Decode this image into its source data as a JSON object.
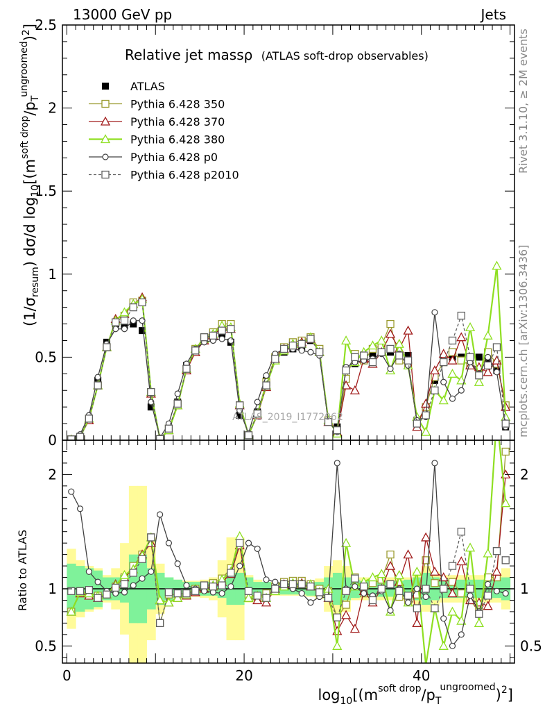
{
  "header": {
    "left_label": "13000 GeV pp",
    "right_label": "Jets"
  },
  "side": {
    "rivet_label": "Rivet 3.1.10, ≥ 2M events",
    "mcplots_label": "mcplots.cern.ch [arXiv:1306.3436]"
  },
  "plot_title": {
    "main": "Relative jet massρ",
    "sub": "(ATLAS soft-drop observables)"
  },
  "watermark": "ATLAS_2019_I1772062",
  "axes": {
    "ylabel_main": "(1/σresum) dσ/d log10[(m soft drop/pT ungroomed)2]",
    "ylabel_ratio": "Ratio to ATLAS",
    "xlabel": "log10[(m soft drop/pT ungroomed)2]"
  },
  "colors": {
    "atlas": "#000000",
    "p350": "#9a9a2e",
    "p370": "#a11b1b",
    "p380": "#8fdf22",
    "p0": "#404040",
    "p2010": "#606060",
    "band_inner": "#7ff29a",
    "band_outer": "#fffb99"
  },
  "chart_data": {
    "type": "line",
    "x": [
      0.5,
      1.5,
      2.5,
      3.5,
      4.5,
      5.5,
      6.5,
      7.5,
      8.5,
      9.5,
      10.5,
      11.5,
      12.5,
      13.5,
      14.5,
      15.5,
      16.5,
      17.5,
      18.5,
      19.5,
      20.5,
      21.5,
      22.5,
      23.5,
      24.5,
      25.5,
      26.5,
      27.5,
      28.5,
      29.5,
      30.5,
      31.5,
      32.5,
      33.5,
      34.5,
      35.5,
      36.5,
      37.5,
      38.5,
      39.5,
      40.5,
      41.5,
      42.5,
      43.5,
      44.5,
      45.5,
      46.5,
      47.5,
      48.5,
      49.5
    ],
    "xlim": [
      -0.5,
      50.5
    ],
    "ylim_main": [
      0,
      2.5
    ],
    "ylim_ratio": [
      0.35,
      2.3
    ],
    "xticks": [
      0,
      20,
      40
    ],
    "yticks_main": [
      0,
      0.5,
      1,
      1.5,
      2,
      2.5
    ],
    "yticks_ratio": [
      0.5,
      1,
      2
    ],
    "legend_position": "top-left",
    "series": [
      {
        "name": "ATLAS",
        "key": "atlas",
        "marker": "filled-square",
        "values": [
          0.005,
          0.02,
          0.13,
          0.36,
          0.59,
          0.7,
          0.69,
          0.7,
          0.66,
          0.2,
          0.01,
          0.07,
          0.23,
          0.45,
          0.55,
          0.6,
          0.62,
          0.64,
          0.59,
          0.15,
          0.03,
          0.17,
          0.36,
          0.49,
          0.53,
          0.55,
          0.56,
          0.6,
          0.55,
          0.12,
          0.08,
          0.43,
          0.46,
          0.5,
          0.52,
          0.53,
          0.53,
          0.52,
          0.51,
          0.12,
          0.15,
          0.36,
          0.47,
          0.5,
          0.5,
          0.5,
          0.5,
          0.48,
          0.42,
          0.08
        ]
      },
      {
        "name": "Pythia 6.428 350",
        "key": "p350",
        "marker": "open-square",
        "values": [
          0.005,
          0.02,
          0.13,
          0.33,
          0.56,
          0.71,
          0.75,
          0.83,
          0.84,
          0.29,
          0.007,
          0.07,
          0.22,
          0.43,
          0.55,
          0.62,
          0.65,
          0.7,
          0.7,
          0.21,
          0.03,
          0.16,
          0.35,
          0.5,
          0.56,
          0.59,
          0.6,
          0.62,
          0.55,
          0.12,
          0.06,
          0.37,
          0.52,
          0.48,
          0.55,
          0.57,
          0.7,
          0.48,
          0.45,
          0.11,
          0.2,
          0.38,
          0.47,
          0.53,
          0.48,
          0.45,
          0.4,
          0.53,
          0.46,
          0.21
        ]
      },
      {
        "name": "Pythia 6.428 370",
        "key": "p370",
        "marker": "open-triangle",
        "values": [
          0.004,
          0.02,
          0.12,
          0.33,
          0.56,
          0.73,
          0.76,
          0.82,
          0.86,
          0.28,
          0.008,
          0.06,
          0.21,
          0.42,
          0.53,
          0.6,
          0.63,
          0.68,
          0.67,
          0.21,
          0.03,
          0.15,
          0.32,
          0.49,
          0.55,
          0.57,
          0.59,
          0.61,
          0.53,
          0.11,
          0.05,
          0.33,
          0.3,
          0.49,
          0.46,
          0.53,
          0.64,
          0.55,
          0.66,
          0.08,
          0.22,
          0.42,
          0.52,
          0.48,
          0.62,
          0.45,
          0.44,
          0.41,
          0.48,
          0.2
        ]
      },
      {
        "name": "Pythia 6.428 380",
        "key": "p380",
        "marker": "open-triangle",
        "values": [
          0.004,
          0.02,
          0.13,
          0.33,
          0.56,
          0.72,
          0.77,
          0.82,
          0.85,
          0.29,
          0.007,
          0.06,
          0.21,
          0.43,
          0.55,
          0.61,
          0.64,
          0.69,
          0.68,
          0.22,
          0.03,
          0.16,
          0.33,
          0.48,
          0.54,
          0.58,
          0.58,
          0.62,
          0.53,
          0.12,
          0.04,
          0.6,
          0.47,
          0.53,
          0.57,
          0.6,
          0.42,
          0.58,
          0.45,
          0.14,
          0.05,
          0.3,
          0.24,
          0.4,
          0.36,
          0.68,
          0.35,
          0.63,
          1.05,
          0.14
        ]
      },
      {
        "name": "Pythia 6.428 p0",
        "key": "p0",
        "marker": "open-circle",
        "values": [
          0.009,
          0.035,
          0.15,
          0.38,
          0.58,
          0.67,
          0.67,
          0.72,
          0.72,
          0.23,
          0.014,
          0.1,
          0.28,
          0.46,
          0.55,
          0.59,
          0.6,
          0.61,
          0.6,
          0.18,
          0.04,
          0.23,
          0.39,
          0.52,
          0.55,
          0.55,
          0.54,
          0.53,
          0.51,
          0.11,
          0.05,
          0.44,
          0.47,
          0.48,
          0.49,
          0.52,
          0.43,
          0.52,
          0.45,
          0.12,
          0.14,
          0.77,
          0.35,
          0.25,
          0.3,
          0.47,
          0.4,
          0.5,
          0.41,
          0.08
        ]
      },
      {
        "name": "Pythia 6.428 p2010",
        "key": "p2010",
        "marker": "dashed-open-square",
        "values": [
          0.005,
          0.02,
          0.13,
          0.33,
          0.56,
          0.71,
          0.72,
          0.8,
          0.83,
          0.29,
          0.007,
          0.07,
          0.22,
          0.43,
          0.54,
          0.62,
          0.63,
          0.66,
          0.67,
          0.21,
          0.03,
          0.16,
          0.33,
          0.49,
          0.55,
          0.57,
          0.58,
          0.61,
          0.53,
          0.11,
          0.06,
          0.42,
          0.5,
          0.51,
          0.47,
          0.53,
          0.55,
          0.51,
          0.48,
          0.1,
          0.15,
          0.3,
          0.47,
          0.6,
          0.75,
          0.5,
          0.39,
          0.45,
          0.56,
          0.1
        ]
      }
    ],
    "ratio": {
      "band_inner": [
        0.22,
        0.2,
        0.18,
        0.16,
        0.1,
        0.1,
        0.12,
        0.3,
        0.3,
        0.18,
        0.14,
        0.1,
        0.08,
        0.06,
        0.06,
        0.06,
        0.06,
        0.08,
        0.14,
        0.14,
        0.1,
        0.06,
        0.06,
        0.05,
        0.05,
        0.05,
        0.05,
        0.06,
        0.06,
        0.1,
        0.14,
        0.1,
        0.08,
        0.07,
        0.07,
        0.07,
        0.07,
        0.07,
        0.08,
        0.1,
        0.14,
        0.1,
        0.08,
        0.08,
        0.08,
        0.08,
        0.08,
        0.08,
        0.08,
        0.1
      ],
      "band_outer": [
        0.35,
        0.25,
        0.2,
        0.18,
        0.12,
        0.18,
        0.4,
        0.9,
        0.9,
        0.45,
        0.22,
        0.1,
        0.08,
        0.07,
        0.07,
        0.08,
        0.1,
        0.25,
        0.45,
        0.45,
        0.12,
        0.08,
        0.06,
        0.06,
        0.06,
        0.06,
        0.06,
        0.07,
        0.09,
        0.2,
        0.25,
        0.2,
        0.1,
        0.1,
        0.1,
        0.1,
        0.1,
        0.1,
        0.1,
        0.15,
        0.2,
        0.15,
        0.12,
        0.12,
        0.12,
        0.12,
        0.12,
        0.12,
        0.12,
        0.18
      ],
      "p350": [
        0.8,
        0.98,
        0.96,
        0.94,
        0.95,
        1.02,
        1.1,
        1.2,
        1.3,
        1.45,
        0.7,
        0.95,
        0.95,
        0.96,
        1.0,
        1.03,
        1.05,
        1.09,
        1.18,
        1.38,
        0.95,
        0.93,
        0.96,
        1.02,
        1.06,
        1.07,
        1.07,
        1.04,
        1.0,
        0.98,
        0.75,
        0.86,
        1.1,
        0.96,
        1.05,
        1.08,
        1.3,
        0.93,
        0.9,
        0.95,
        1.25,
        1.05,
        1.0,
        1.06,
        0.96,
        0.9,
        0.8,
        1.1,
        1.1,
        2.2
      ],
      "p370": [
        0.8,
        0.96,
        0.94,
        0.92,
        0.95,
        1.04,
        1.1,
        1.17,
        1.3,
        1.4,
        0.9,
        0.88,
        0.92,
        0.94,
        0.97,
        1.0,
        1.02,
        1.06,
        1.13,
        1.38,
        0.92,
        0.9,
        0.88,
        1.0,
        1.04,
        1.04,
        1.05,
        1.02,
        0.97,
        0.92,
        0.63,
        0.77,
        0.65,
        0.98,
        0.88,
        1.0,
        1.2,
        1.06,
        1.3,
        0.7,
        1.45,
        1.15,
        1.1,
        0.96,
        1.24,
        0.9,
        0.88,
        0.85,
        1.15,
        2.0
      ],
      "p380": [
        0.8,
        0.97,
        0.96,
        0.94,
        0.95,
        1.03,
        1.12,
        1.17,
        1.29,
        1.45,
        0.9,
        0.88,
        0.92,
        0.95,
        1.0,
        1.02,
        1.03,
        1.08,
        1.15,
        1.46,
        0.92,
        0.94,
        0.92,
        0.98,
        1.02,
        1.05,
        1.04,
        1.04,
        0.97,
        1.0,
        0.5,
        1.4,
        1.02,
        1.06,
        1.1,
        1.13,
        0.8,
        1.12,
        0.88,
        1.15,
        0.33,
        0.83,
        0.5,
        0.8,
        0.72,
        1.36,
        0.7,
        1.31,
        2.5,
        1.75
      ],
      "p0": [
        1.85,
        1.7,
        1.15,
        1.06,
        0.98,
        0.96,
        0.97,
        1.03,
        1.09,
        1.15,
        1.65,
        1.4,
        1.22,
        1.03,
        1.0,
        0.98,
        0.97,
        0.96,
        1.02,
        1.2,
        1.4,
        1.35,
        1.08,
        1.06,
        1.04,
        1.0,
        0.96,
        0.88,
        0.93,
        0.92,
        2.1,
        1.0,
        1.02,
        0.96,
        0.94,
        0.98,
        0.81,
        1.0,
        0.88,
        1.0,
        0.93,
        2.1,
        0.74,
        0.5,
        0.6,
        0.94,
        0.8,
        1.04,
        0.98,
        0.96
      ],
      "p2010": [
        0.98,
        0.98,
        0.99,
        0.92,
        0.95,
        1.01,
        1.04,
        1.14,
        1.26,
        1.45,
        0.7,
        0.97,
        0.96,
        0.96,
        0.98,
        1.03,
        1.02,
        1.03,
        1.14,
        1.4,
        0.98,
        0.94,
        0.92,
        1.0,
        1.04,
        1.04,
        1.04,
        1.02,
        0.97,
        0.92,
        0.75,
        0.98,
        1.09,
        1.02,
        0.9,
        1.0,
        1.04,
        0.98,
        0.94,
        0.83,
        1.0,
        0.83,
        1.0,
        1.2,
        1.5,
        1.0,
        0.78,
        0.94,
        1.33,
        1.25
      ]
    }
  },
  "legend_items": [
    {
      "label": "ATLAS",
      "key": "atlas"
    },
    {
      "label": "Pythia 6.428 350",
      "key": "p350"
    },
    {
      "label": "Pythia 6.428 370",
      "key": "p370"
    },
    {
      "label": "Pythia 6.428 380",
      "key": "p380"
    },
    {
      "label": "Pythia 6.428 p0",
      "key": "p0"
    },
    {
      "label": "Pythia 6.428 p2010",
      "key": "p2010"
    }
  ]
}
